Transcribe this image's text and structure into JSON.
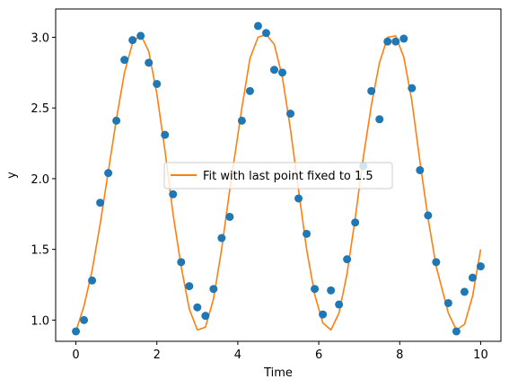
{
  "chart_data": {
    "type": "scatter",
    "xlabel": "Time",
    "ylabel": "y",
    "xlim": [
      -0.5,
      10.5
    ],
    "ylim": [
      0.85,
      3.2
    ],
    "x_ticks": [
      0,
      2,
      4,
      6,
      8,
      10
    ],
    "x_tick_labels": [
      "0",
      "2",
      "4",
      "6",
      "8",
      "10"
    ],
    "y_ticks": [
      1.0,
      1.5,
      2.0,
      2.5,
      3.0
    ],
    "y_tick_labels": [
      "1.0",
      "1.5",
      "2.0",
      "2.5",
      "3.0"
    ],
    "grid": false,
    "legend_placement": "center",
    "colors": {
      "points": "#1f77b4",
      "fit": "#ff7f0e"
    },
    "series": [
      {
        "kind": "scatter",
        "x": [
          0.0,
          0.2,
          0.4,
          0.6,
          0.8,
          1.0,
          1.2,
          1.4,
          1.6,
          1.8,
          2.0,
          2.2,
          2.4,
          2.6,
          2.8,
          3.0,
          3.2,
          3.4,
          3.6,
          3.8,
          4.1,
          4.3,
          4.5,
          4.7,
          4.9,
          5.1,
          5.3,
          5.5,
          5.7,
          5.9,
          6.1,
          6.3,
          6.5,
          6.7,
          6.9,
          7.1,
          7.3,
          7.5,
          7.7,
          7.9,
          8.1,
          8.3,
          8.5,
          8.7,
          8.9,
          9.2,
          9.4,
          9.6,
          9.8,
          10.0
        ],
        "y": [
          0.92,
          1.0,
          1.28,
          1.83,
          2.04,
          2.41,
          2.84,
          2.98,
          3.01,
          2.82,
          2.67,
          2.31,
          1.89,
          1.41,
          1.24,
          1.09,
          1.03,
          1.22,
          1.58,
          1.73,
          2.41,
          2.62,
          3.08,
          3.03,
          2.77,
          2.75,
          2.46,
          1.86,
          1.61,
          1.22,
          1.04,
          1.21,
          1.11,
          1.43,
          1.69,
          2.09,
          2.62,
          2.42,
          2.97,
          2.97,
          2.99,
          2.64,
          2.06,
          1.74,
          1.41,
          1.12,
          0.92,
          1.2,
          1.3,
          1.38
        ]
      },
      {
        "kind": "line",
        "name": "Fit with last point fixed to 1.5",
        "x": [
          0.0,
          0.2,
          0.4,
          0.6,
          0.8,
          1.0,
          1.2,
          1.4,
          1.6,
          1.8,
          2.0,
          2.2,
          2.4,
          2.6,
          2.8,
          3.0,
          3.2,
          3.4,
          3.6,
          3.8,
          4.1,
          4.3,
          4.5,
          4.7,
          4.9,
          5.1,
          5.3,
          5.5,
          5.7,
          5.9,
          6.1,
          6.3,
          6.5,
          6.7,
          6.9,
          7.1,
          7.3,
          7.5,
          7.7,
          7.9,
          8.1,
          8.3,
          8.5,
          8.7,
          8.9,
          9.2,
          9.4,
          9.6,
          9.8,
          10.0
        ],
        "y": [
          0.92,
          1.1,
          1.35,
          1.68,
          2.05,
          2.42,
          2.75,
          2.96,
          3.02,
          2.9,
          2.6,
          2.2,
          1.75,
          1.38,
          1.08,
          0.93,
          0.95,
          1.15,
          1.5,
          1.92,
          2.5,
          2.85,
          3.0,
          3.02,
          2.95,
          2.72,
          2.35,
          1.92,
          1.5,
          1.18,
          0.98,
          0.93,
          1.05,
          1.33,
          1.72,
          2.15,
          2.52,
          2.82,
          3.0,
          3.01,
          2.86,
          2.55,
          2.12,
          1.72,
          1.38,
          1.05,
          0.93,
          0.97,
          1.17,
          1.5
        ]
      }
    ]
  }
}
